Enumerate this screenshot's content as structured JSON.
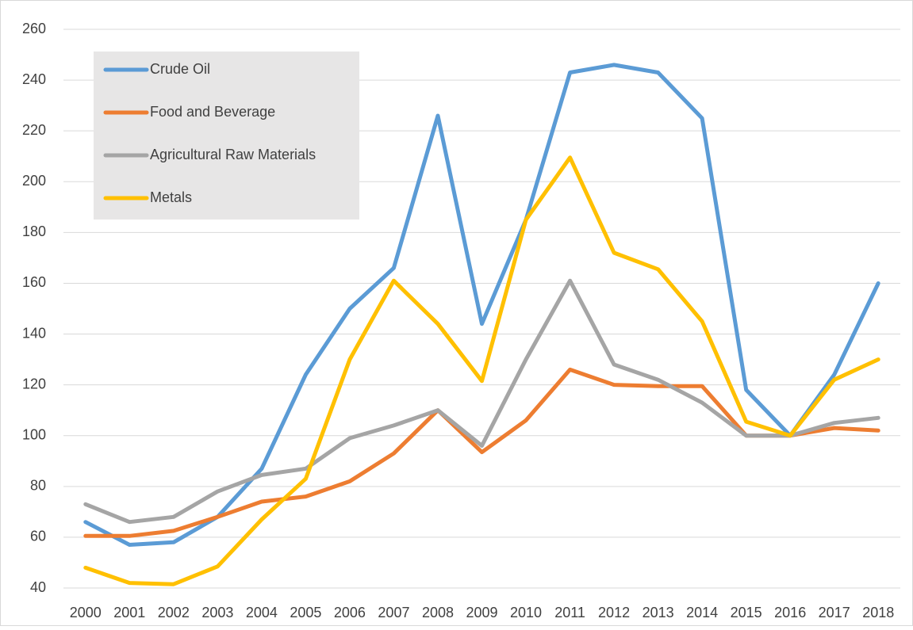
{
  "chart_data": {
    "type": "line",
    "categories": [
      "2000",
      "2001",
      "2002",
      "2003",
      "2004",
      "2005",
      "2006",
      "2007",
      "2008",
      "2009",
      "2010",
      "2011",
      "2012",
      "2013",
      "2014",
      "2015",
      "2016",
      "2017",
      "2018"
    ],
    "series": [
      {
        "name": "Crude Oil",
        "color": "#5b9bd5",
        "values": [
          66,
          57,
          58,
          68,
          87,
          124,
          150,
          166,
          226,
          144,
          185,
          243,
          246,
          243,
          225,
          118,
          100,
          124,
          160
        ]
      },
      {
        "name": "Food and Beverage",
        "color": "#ed7d31",
        "values": [
          60.5,
          60.5,
          62.5,
          68,
          74,
          76,
          82,
          93,
          110,
          93.5,
          106,
          126,
          120,
          119.5,
          119.5,
          100,
          100,
          103,
          102
        ]
      },
      {
        "name": "Agricultural Raw Materials",
        "color": "#a5a5a5",
        "values": [
          73,
          66,
          68,
          78,
          84.5,
          87,
          99,
          104,
          110,
          96,
          130,
          161,
          128,
          122,
          113,
          100,
          100,
          105,
          107
        ]
      },
      {
        "name": "Metals",
        "color": "#ffc000",
        "values": [
          48,
          42,
          41.5,
          48.5,
          67,
          83,
          130,
          161,
          144,
          121.5,
          185,
          209.5,
          172,
          165.5,
          145,
          105.5,
          100,
          122,
          130
        ]
      }
    ],
    "ylim": [
      40,
      260
    ],
    "yticks": [
      40,
      60,
      80,
      100,
      120,
      140,
      160,
      180,
      200,
      220,
      240,
      260
    ],
    "grid": true,
    "legend": "upper left"
  }
}
